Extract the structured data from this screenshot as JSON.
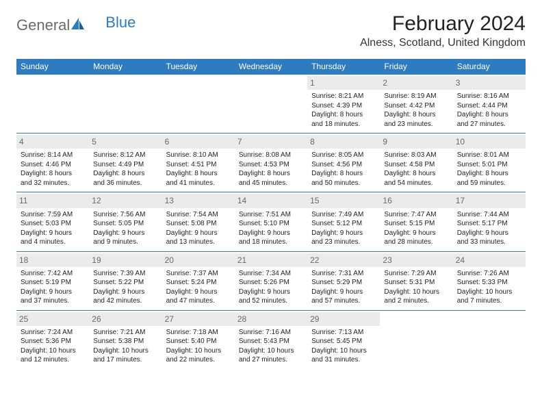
{
  "logo": {
    "text1": "General",
    "text2": "Blue"
  },
  "title": "February 2024",
  "location": "Alness, Scotland, United Kingdom",
  "colors": {
    "header_bg": "#2e7bc0",
    "header_text": "#ffffff",
    "daynum_bg": "#ebebeb",
    "daynum_text": "#696969",
    "rule": "#2e7bc0",
    "body_text": "#222222",
    "page_bg": "#ffffff"
  },
  "day_headers": [
    "Sunday",
    "Monday",
    "Tuesday",
    "Wednesday",
    "Thursday",
    "Friday",
    "Saturday"
  ],
  "weeks": [
    [
      null,
      null,
      null,
      null,
      {
        "n": "1",
        "sr": "8:21 AM",
        "ss": "4:39 PM",
        "dl": "8 hours and 18 minutes."
      },
      {
        "n": "2",
        "sr": "8:19 AM",
        "ss": "4:42 PM",
        "dl": "8 hours and 23 minutes."
      },
      {
        "n": "3",
        "sr": "8:16 AM",
        "ss": "4:44 PM",
        "dl": "8 hours and 27 minutes."
      }
    ],
    [
      {
        "n": "4",
        "sr": "8:14 AM",
        "ss": "4:46 PM",
        "dl": "8 hours and 32 minutes."
      },
      {
        "n": "5",
        "sr": "8:12 AM",
        "ss": "4:49 PM",
        "dl": "8 hours and 36 minutes."
      },
      {
        "n": "6",
        "sr": "8:10 AM",
        "ss": "4:51 PM",
        "dl": "8 hours and 41 minutes."
      },
      {
        "n": "7",
        "sr": "8:08 AM",
        "ss": "4:53 PM",
        "dl": "8 hours and 45 minutes."
      },
      {
        "n": "8",
        "sr": "8:05 AM",
        "ss": "4:56 PM",
        "dl": "8 hours and 50 minutes."
      },
      {
        "n": "9",
        "sr": "8:03 AM",
        "ss": "4:58 PM",
        "dl": "8 hours and 54 minutes."
      },
      {
        "n": "10",
        "sr": "8:01 AM",
        "ss": "5:01 PM",
        "dl": "8 hours and 59 minutes."
      }
    ],
    [
      {
        "n": "11",
        "sr": "7:59 AM",
        "ss": "5:03 PM",
        "dl": "9 hours and 4 minutes."
      },
      {
        "n": "12",
        "sr": "7:56 AM",
        "ss": "5:05 PM",
        "dl": "9 hours and 9 minutes."
      },
      {
        "n": "13",
        "sr": "7:54 AM",
        "ss": "5:08 PM",
        "dl": "9 hours and 13 minutes."
      },
      {
        "n": "14",
        "sr": "7:51 AM",
        "ss": "5:10 PM",
        "dl": "9 hours and 18 minutes."
      },
      {
        "n": "15",
        "sr": "7:49 AM",
        "ss": "5:12 PM",
        "dl": "9 hours and 23 minutes."
      },
      {
        "n": "16",
        "sr": "7:47 AM",
        "ss": "5:15 PM",
        "dl": "9 hours and 28 minutes."
      },
      {
        "n": "17",
        "sr": "7:44 AM",
        "ss": "5:17 PM",
        "dl": "9 hours and 33 minutes."
      }
    ],
    [
      {
        "n": "18",
        "sr": "7:42 AM",
        "ss": "5:19 PM",
        "dl": "9 hours and 37 minutes."
      },
      {
        "n": "19",
        "sr": "7:39 AM",
        "ss": "5:22 PM",
        "dl": "9 hours and 42 minutes."
      },
      {
        "n": "20",
        "sr": "7:37 AM",
        "ss": "5:24 PM",
        "dl": "9 hours and 47 minutes."
      },
      {
        "n": "21",
        "sr": "7:34 AM",
        "ss": "5:26 PM",
        "dl": "9 hours and 52 minutes."
      },
      {
        "n": "22",
        "sr": "7:31 AM",
        "ss": "5:29 PM",
        "dl": "9 hours and 57 minutes."
      },
      {
        "n": "23",
        "sr": "7:29 AM",
        "ss": "5:31 PM",
        "dl": "10 hours and 2 minutes."
      },
      {
        "n": "24",
        "sr": "7:26 AM",
        "ss": "5:33 PM",
        "dl": "10 hours and 7 minutes."
      }
    ],
    [
      {
        "n": "25",
        "sr": "7:24 AM",
        "ss": "5:36 PM",
        "dl": "10 hours and 12 minutes."
      },
      {
        "n": "26",
        "sr": "7:21 AM",
        "ss": "5:38 PM",
        "dl": "10 hours and 17 minutes."
      },
      {
        "n": "27",
        "sr": "7:18 AM",
        "ss": "5:40 PM",
        "dl": "10 hours and 22 minutes."
      },
      {
        "n": "28",
        "sr": "7:16 AM",
        "ss": "5:43 PM",
        "dl": "10 hours and 27 minutes."
      },
      {
        "n": "29",
        "sr": "7:13 AM",
        "ss": "5:45 PM",
        "dl": "10 hours and 31 minutes."
      },
      null,
      null
    ]
  ],
  "labels": {
    "sunrise": "Sunrise:",
    "sunset": "Sunset:",
    "daylight": "Daylight:"
  }
}
